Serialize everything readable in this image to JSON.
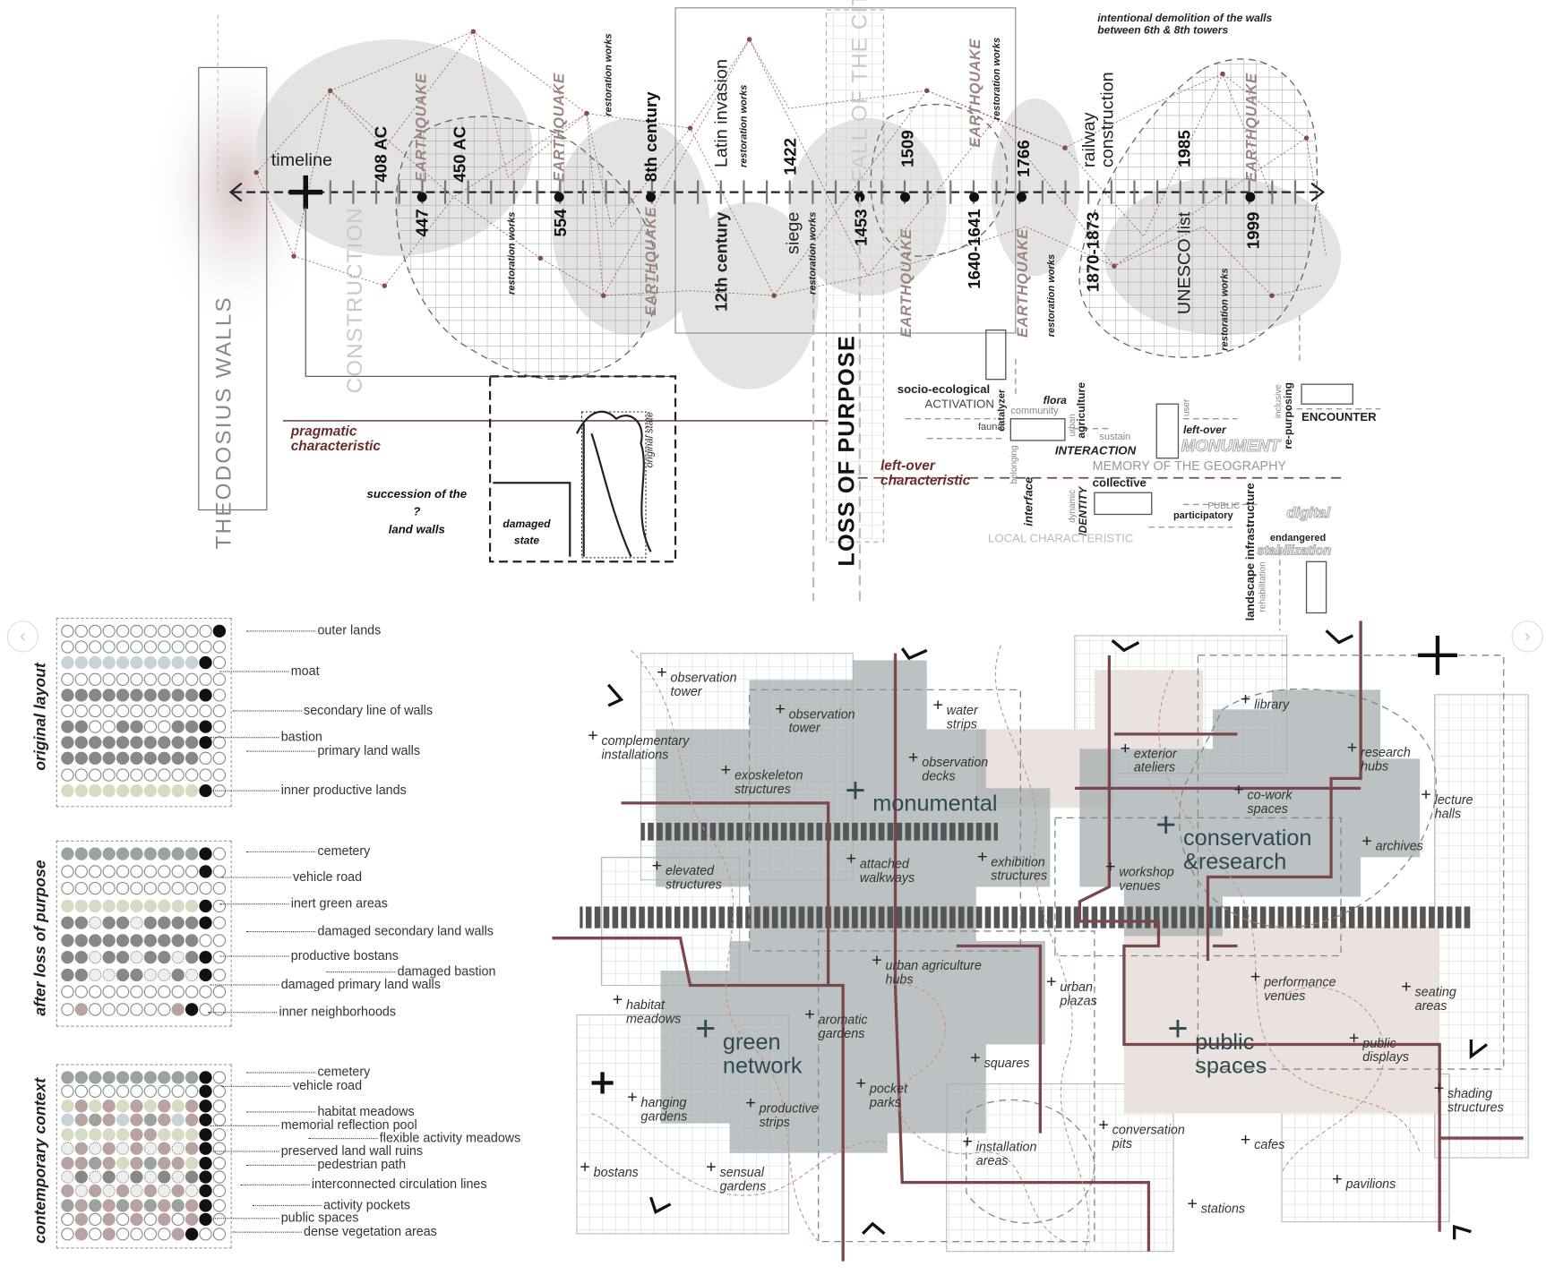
{
  "title": "THEODOSIUS WALLS",
  "timeline": {
    "label": "timeline",
    "top_note": "intentional demolition of the walls\nbetween 6th & 8th towers",
    "above": [
      "408 AC",
      "EARTHQUAKE",
      "450 AC",
      "EARTHQUAKE",
      "restoration works",
      "8th century",
      "Latin invasion",
      "restoration works",
      "1422",
      "FALL OF THE CITY",
      "1509",
      "EARTHQUAKE",
      "restoration works",
      "1766",
      "railway\nconstruction",
      "1985",
      "EARTHQUAKE"
    ],
    "below": [
      "CONSTRUCTION",
      "447",
      "restoration works",
      "554",
      "EARTHQUAKE",
      "12th century",
      "siege",
      "restoration works",
      "1453",
      "EARTHQUAKE",
      "1640-1641",
      "EARTHQUAKE",
      "restoration works",
      "1870-1873",
      "UNESCO list",
      "restoration works",
      "1999"
    ]
  },
  "annotations": {
    "pragmatic": "pragmatic\ncharacteristic",
    "succession": "succession of the\n?\nland walls",
    "damaged_state": "damaged\nstate",
    "original_state": "original state",
    "loss_of_purpose": "LOSS OF PURPOSE",
    "leftover": "left-over\ncharacteristic"
  },
  "concepts": {
    "socio_ecological": "socio-ecological",
    "activation": "ACTIVATION",
    "catalyzer": "catalyzer",
    "flora": "flora",
    "community": "community",
    "fauna": "fauna",
    "urban": "urban",
    "agriculture": "agriculture",
    "sustain": "sustain",
    "interaction": "INTERACTION",
    "user": "user",
    "leftover": "left-over",
    "monument": "MONUMENT",
    "inclusive": "inclusive",
    "repurposing": "re-purposing",
    "encounter": "ENCOUNTER",
    "memory": "MEMORY OF THE GEOGRAPHY",
    "belonging": "belonging",
    "interface": "interface",
    "dynamic": "dynamic",
    "identity": "IDENTITY",
    "collective": "collective",
    "public": "PUBLIC",
    "participatory": "participatory",
    "landscape": "landscape infrastructure",
    "rehabilitation": "rehabilitation",
    "digital": "digital",
    "endangered": "endangered",
    "stabilization": "stabilization",
    "local": "LOCAL CHARACTERISTIC"
  },
  "legends": [
    {
      "title": "original layout",
      "items": [
        "outer lands",
        "moat",
        "secondary line of walls",
        "bastion",
        "primary land walls",
        "inner productive lands"
      ]
    },
    {
      "title": "after loss of purpose",
      "items": [
        "cemetery",
        "vehicle road",
        "inert green areas",
        "damaged secondary land walls",
        "productive bostans",
        "damaged bastion",
        "damaged primary land walls",
        "inner neighborhoods"
      ]
    },
    {
      "title": "contemporary context",
      "items": [
        "cemetery",
        "vehicle road",
        "habitat meadows",
        "memorial reflection pool",
        "flexible activity meadows",
        "preserved land wall ruins",
        "pedestrian path",
        "interconnected circulation lines",
        "activity pockets",
        "public spaces",
        "dense vegetation areas"
      ]
    }
  ],
  "map": {
    "zones": [
      "monumental",
      "conservation\n&research",
      "green\nnetwork",
      "public\nspaces"
    ],
    "labels": [
      "observation\ntower",
      "observation\ntower",
      "water\nstrips",
      "complementary\ninstallations",
      "exoskeleton\nstructures",
      "observation\ndecks",
      "library",
      "exterior\nateliers",
      "research\nhubs",
      "co-work\nspaces",
      "lecture\nhalls",
      "archives",
      "elevated\nstructures",
      "attached\nwalkways",
      "exhibition\nstructures",
      "workshop\nvenues",
      "urban agriculture\nhubs",
      "urban\nplazas",
      "performance\nvenues",
      "seating\nareas",
      "habitat\nmeadows",
      "aromatic\ngardens",
      "public\ndisplays",
      "squares",
      "pocket\nparks",
      "hanging\ngardens",
      "productive\nstrips",
      "shading\nstructures",
      "conversation\npits",
      "cafes",
      "installation\nareas",
      "bostans",
      "sensual\ngardens",
      "pavilions",
      "stations"
    ]
  },
  "colors": {
    "accent_red": "#7a4848",
    "zone_text": "#2f4a4f",
    "earthquake": "#9c8683",
    "shade": "#a9b0b3"
  },
  "nav": {
    "prev": "‹",
    "next": "›",
    "prev_icon": "chevron-left-icon",
    "next_icon": "chevron-right-icon"
  }
}
